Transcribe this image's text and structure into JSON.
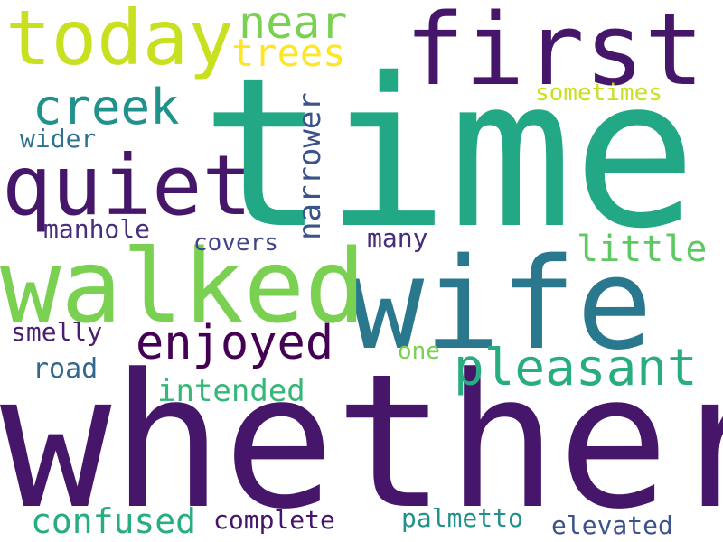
{
  "words": [
    {
      "text": "time",
      "color": "#22A884"
    },
    {
      "text": "whether",
      "color": "#46166B"
    },
    {
      "text": "wife",
      "color": "#2A788E"
    },
    {
      "text": "walked",
      "color": "#7AD151"
    },
    {
      "text": "first",
      "color": "#46166B"
    },
    {
      "text": "quiet",
      "color": "#46166B"
    },
    {
      "text": "today",
      "color": "#C8E020"
    },
    {
      "text": "enjoyed",
      "color": "#440154"
    },
    {
      "text": "pleasant",
      "color": "#27AD81"
    },
    {
      "text": "creek",
      "color": "#21918C"
    },
    {
      "text": "near",
      "color": "#7AD151"
    },
    {
      "text": "trees",
      "color": "#FDE725"
    },
    {
      "text": "narrower",
      "color": "#3B528B"
    },
    {
      "text": "confused",
      "color": "#27AD81"
    },
    {
      "text": "intended",
      "color": "#35B779"
    },
    {
      "text": "little",
      "color": "#5EC962"
    },
    {
      "text": "sometimes",
      "color": "#C8E020"
    },
    {
      "text": "wider",
      "color": "#2C728E"
    },
    {
      "text": "manhole",
      "color": "#472D7B"
    },
    {
      "text": "covers",
      "color": "#414487"
    },
    {
      "text": "many",
      "color": "#472D7B"
    },
    {
      "text": "smelly",
      "color": "#481F70"
    },
    {
      "text": "road",
      "color": "#31688E"
    },
    {
      "text": "one",
      "color": "#7AD151"
    },
    {
      "text": "complete",
      "color": "#46166B"
    },
    {
      "text": "palmetto",
      "color": "#21918C"
    },
    {
      "text": "elevated",
      "color": "#3B528B"
    }
  ]
}
